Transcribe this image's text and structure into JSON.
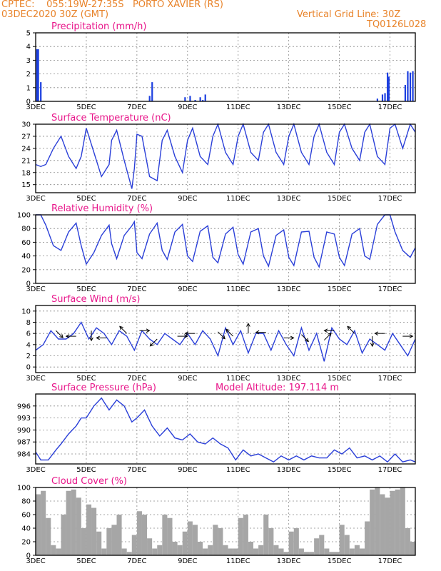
{
  "header": {
    "source": "CPTEC:",
    "coords": "055:19W-27:35S",
    "location": "PORTO XAVIER (RS)",
    "date": "03DEC2020 30Z (GMT)",
    "grid_line_note": "Vertical Grid Line: 30Z",
    "code": "TQ0126L028",
    "model_altitude": "Model Altitude: 197.114 m"
  },
  "colors": {
    "header": "#e8832a",
    "title": "#e8168a",
    "line": "#2a3fd8",
    "bar": "#1c3fe0",
    "cloud": "#a6a6a6"
  },
  "x_tick_labels": [
    "3DEC",
    "5DEC",
    "7DEC",
    "9DEC",
    "11DEC",
    "13DEC",
    "15DEC",
    "17DEC"
  ],
  "chart_data": [
    {
      "type": "bar",
      "title": "Precipitation (mm/h)",
      "x": [
        3.05,
        3.1,
        3.2,
        7.5,
        7.6,
        8.9,
        9.1,
        9.3,
        9.5,
        9.6,
        9.7,
        16.5,
        16.7,
        16.8,
        16.9,
        16.95,
        17.6,
        17.7,
        17.8,
        17.9
      ],
      "y": [
        3.8,
        3.8,
        1.4,
        0.4,
        1.4,
        0.3,
        0.4,
        0.1,
        0.3,
        0.1,
        0.5,
        0.2,
        0.5,
        0.6,
        2.1,
        1.8,
        1.2,
        2.2,
        2.1,
        2.2
      ],
      "ylim": [
        0,
        5
      ],
      "yticks": [
        0,
        1,
        2,
        3,
        4,
        5
      ]
    },
    {
      "type": "line",
      "title": "Surface Temperature (nC)",
      "x": [
        3,
        3.2,
        3.4,
        3.7,
        4,
        4.3,
        4.6,
        4.8,
        5,
        5.3,
        5.6,
        5.9,
        6,
        6.2,
        6.5,
        6.8,
        6.9,
        7,
        7.2,
        7.5,
        7.8,
        8,
        8.2,
        8.5,
        8.8,
        9,
        9.2,
        9.5,
        9.8,
        10,
        10.2,
        10.5,
        10.8,
        11,
        11.2,
        11.5,
        11.8,
        12,
        12.2,
        12.5,
        12.8,
        13,
        13.2,
        13.5,
        13.8,
        14,
        14.2,
        14.5,
        14.8,
        15,
        15.2,
        15.5,
        15.8,
        16,
        16.2,
        16.5,
        16.8,
        17,
        17.2,
        17.5,
        17.8,
        18
      ],
      "y": [
        20,
        19.5,
        20,
        24,
        27,
        22,
        19,
        22,
        29,
        23,
        17,
        20,
        26,
        28.5,
        21,
        14,
        19,
        27.5,
        27,
        17,
        16,
        26,
        28.5,
        22,
        18,
        26,
        29,
        22,
        20,
        27,
        30,
        23,
        20,
        27,
        30,
        23,
        21,
        28,
        30,
        23,
        20,
        27,
        30,
        23,
        20,
        27,
        30,
        23,
        20,
        28,
        30,
        24,
        21,
        28,
        30,
        22,
        20,
        29,
        30,
        24,
        30,
        28
      ],
      "ylim": [
        13,
        30
      ],
      "yticks": [
        15,
        18,
        21,
        24,
        27,
        30
      ]
    },
    {
      "type": "line",
      "title": "Relative Humidity (%)",
      "x": [
        3,
        3.2,
        3.4,
        3.7,
        4,
        4.3,
        4.6,
        4.8,
        5,
        5.3,
        5.6,
        5.9,
        6,
        6.2,
        6.5,
        6.8,
        6.9,
        7,
        7.2,
        7.5,
        7.8,
        8,
        8.2,
        8.5,
        8.8,
        9,
        9.2,
        9.5,
        9.8,
        10,
        10.2,
        10.5,
        10.8,
        11,
        11.2,
        11.5,
        11.8,
        12,
        12.2,
        12.5,
        12.8,
        13,
        13.2,
        13.5,
        13.8,
        14,
        14.2,
        14.5,
        14.8,
        15,
        15.2,
        15.5,
        15.8,
        16,
        16.2,
        16.5,
        16.8,
        17,
        17.2,
        17.5,
        17.8,
        18
      ],
      "y": [
        100,
        100,
        85,
        55,
        48,
        75,
        88,
        55,
        28,
        45,
        70,
        85,
        58,
        36,
        70,
        84,
        90,
        45,
        36,
        72,
        88,
        48,
        35,
        75,
        86,
        40,
        32,
        76,
        84,
        38,
        30,
        72,
        82,
        42,
        28,
        75,
        80,
        40,
        25,
        70,
        78,
        38,
        26,
        75,
        76,
        38,
        24,
        75,
        72,
        38,
        26,
        72,
        80,
        40,
        35,
        86,
        100,
        100,
        75,
        48,
        38,
        52
      ],
      "ylim": [
        0,
        100
      ],
      "yticks": [
        0,
        20,
        40,
        60,
        80,
        100
      ]
    },
    {
      "type": "line",
      "title": "Surface Wind (m/s)",
      "x": [
        3,
        3.3,
        3.6,
        3.9,
        4.2,
        4.5,
        4.8,
        5.1,
        5.4,
        5.7,
        6,
        6.3,
        6.6,
        6.9,
        7.2,
        7.5,
        7.8,
        8.1,
        8.4,
        8.7,
        9,
        9.3,
        9.6,
        9.9,
        10.2,
        10.5,
        10.8,
        11.1,
        11.4,
        11.7,
        12,
        12.3,
        12.6,
        12.9,
        13.2,
        13.5,
        13.8,
        14.1,
        14.4,
        14.7,
        15,
        15.3,
        15.6,
        15.9,
        16.2,
        16.5,
        16.8,
        17.1,
        17.4,
        17.7,
        18
      ],
      "y": [
        3,
        4,
        6.5,
        5,
        5,
        6,
        8,
        5,
        7,
        6,
        4,
        6.5,
        5.5,
        3,
        6.5,
        5,
        4,
        6,
        5,
        4,
        6,
        4,
        6.5,
        5,
        2,
        7,
        4,
        6.5,
        2.5,
        6,
        6,
        3,
        6.5,
        4,
        2,
        7,
        3,
        6,
        1,
        7,
        5,
        4,
        6.5,
        2.5,
        5,
        4,
        3,
        6,
        4,
        2,
        5
      ],
      "ylim": [
        -1,
        11
      ],
      "yticks": [
        0,
        2,
        4,
        6,
        8,
        10
      ]
    },
    {
      "type": "line",
      "title": "Surface Pressure (hPa)",
      "x": [
        3,
        3.2,
        3.5,
        3.8,
        4,
        4.3,
        4.6,
        4.8,
        5,
        5.3,
        5.6,
        5.9,
        6.2,
        6.5,
        6.8,
        7,
        7.3,
        7.6,
        7.9,
        8.2,
        8.5,
        8.8,
        9.1,
        9.4,
        9.7,
        10,
        10.3,
        10.6,
        10.9,
        11.2,
        11.5,
        11.8,
        12.1,
        12.4,
        12.7,
        13,
        13.3,
        13.6,
        13.9,
        14.2,
        14.5,
        14.8,
        15.1,
        15.4,
        15.7,
        16,
        16.3,
        16.6,
        16.9,
        17.2,
        17.5,
        17.8,
        18
      ],
      "y": [
        984.5,
        982.5,
        982.5,
        985,
        986.5,
        989,
        991,
        993,
        993,
        996,
        998,
        995,
        997.5,
        996,
        992,
        993,
        995,
        991,
        988.5,
        990.5,
        988,
        987.5,
        989,
        987,
        986.5,
        988,
        986.5,
        985.5,
        982.5,
        985,
        983.5,
        984,
        983,
        982,
        983.5,
        982.5,
        983.5,
        982.5,
        983.5,
        983,
        983,
        985,
        984,
        985.5,
        983,
        983.5,
        982.5,
        983.5,
        982,
        984,
        982,
        982.5,
        982
      ],
      "ylim": [
        981.5,
        999
      ],
      "yticks": [
        984,
        987,
        990,
        993,
        996
      ]
    },
    {
      "type": "area",
      "title": "Cloud Cover (%)",
      "x": [
        3,
        3.2,
        3.4,
        3.6,
        3.8,
        4,
        4.2,
        4.4,
        4.6,
        4.8,
        5,
        5.2,
        5.4,
        5.6,
        5.8,
        6,
        6.2,
        6.4,
        6.6,
        6.8,
        7,
        7.2,
        7.4,
        7.6,
        7.8,
        8,
        8.2,
        8.4,
        8.6,
        8.8,
        9,
        9.2,
        9.4,
        9.6,
        9.8,
        10,
        10.2,
        10.4,
        10.6,
        10.8,
        11,
        11.2,
        11.4,
        11.6,
        11.8,
        12,
        12.2,
        12.4,
        12.6,
        12.8,
        13,
        13.2,
        13.4,
        13.6,
        13.8,
        14,
        14.2,
        14.4,
        14.6,
        14.8,
        15,
        15.2,
        15.4,
        15.6,
        15.8,
        16,
        16.2,
        16.4,
        16.6,
        16.8,
        17,
        17.2,
        17.4,
        17.6,
        17.8,
        18
      ],
      "y": [
        90,
        95,
        55,
        15,
        10,
        60,
        95,
        97,
        85,
        40,
        75,
        70,
        35,
        10,
        40,
        45,
        60,
        10,
        5,
        30,
        65,
        60,
        25,
        10,
        15,
        60,
        55,
        20,
        15,
        35,
        50,
        45,
        20,
        10,
        15,
        45,
        40,
        15,
        10,
        10,
        55,
        60,
        20,
        10,
        15,
        60,
        40,
        15,
        10,
        5,
        35,
        40,
        10,
        5,
        5,
        25,
        30,
        10,
        5,
        5,
        45,
        30,
        10,
        15,
        10,
        50,
        97,
        100,
        90,
        85,
        95,
        97,
        100,
        40,
        20,
        15
      ],
      "ylim": [
        0,
        100
      ],
      "yticks": [
        0,
        20,
        40,
        60,
        80,
        100
      ]
    }
  ],
  "wind_vectors": [
    {
      "x": 3.8,
      "y": 6.5,
      "dir": "SE"
    },
    {
      "x": 4.6,
      "y": 5.5,
      "dir": "W"
    },
    {
      "x": 5.2,
      "y": 6.5,
      "dir": "S"
    },
    {
      "x": 5.8,
      "y": 5.2,
      "dir": "W"
    },
    {
      "x": 6.6,
      "y": 6,
      "dir": "NW"
    },
    {
      "x": 7.1,
      "y": 6.5,
      "dir": "E"
    },
    {
      "x": 7.8,
      "y": 5,
      "dir": "SW"
    },
    {
      "x": 8.6,
      "y": 5.5,
      "dir": "E"
    },
    {
      "x": 9.3,
      "y": 6,
      "dir": "W"
    },
    {
      "x": 10.2,
      "y": 6.3,
      "dir": "SE"
    },
    {
      "x": 10.8,
      "y": 5.5,
      "dir": "NW"
    },
    {
      "x": 11.4,
      "y": 6,
      "dir": "N"
    },
    {
      "x": 12.1,
      "y": 6.2,
      "dir": "W"
    },
    {
      "x": 12.8,
      "y": 5.2,
      "dir": "E"
    },
    {
      "x": 13.5,
      "y": 5.8,
      "dir": "SE"
    },
    {
      "x": 14.4,
      "y": 4.8,
      "dir": "NE"
    },
    {
      "x": 14.8,
      "y": 6.5,
      "dir": "W"
    },
    {
      "x": 15.6,
      "y": 6,
      "dir": "NW"
    },
    {
      "x": 16.3,
      "y": 5.5,
      "dir": "S"
    },
    {
      "x": 16.8,
      "y": 6,
      "dir": "W"
    },
    {
      "x": 17.5,
      "y": 5.5,
      "dir": "E"
    }
  ]
}
